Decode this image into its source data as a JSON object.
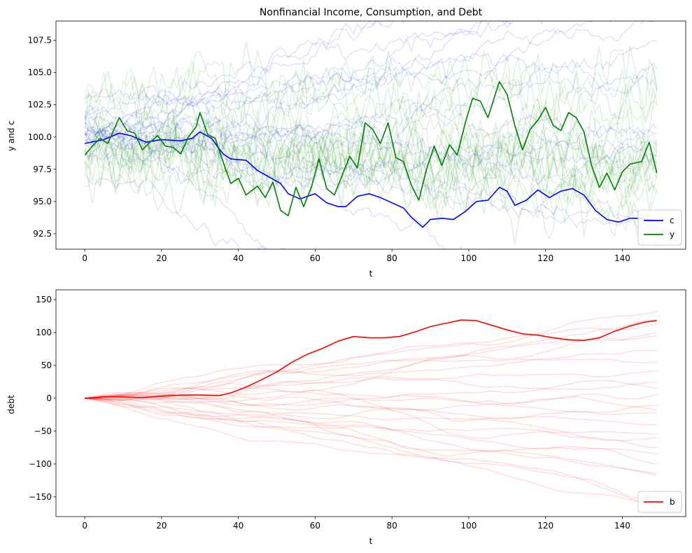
{
  "chart_data": [
    {
      "type": "line",
      "title": "Nonfinancial Income, Consumption, and Debt",
      "xlabel": "t",
      "ylabel": "y and c",
      "xlim": [
        -7.5,
        156.5
      ],
      "ylim": [
        91.3,
        109.0
      ],
      "xticks": [
        0,
        20,
        40,
        60,
        80,
        100,
        120,
        140
      ],
      "yticks": [
        92.5,
        95.0,
        97.5,
        100.0,
        102.5,
        105.0,
        107.5
      ],
      "ytick_labels": [
        "92.5",
        "95.0",
        "97.5",
        "100.0",
        "102.5",
        "105.0",
        "107.5"
      ],
      "grid": false,
      "legend_position": "lower-right",
      "colors": {
        "c": "#0000ff",
        "y": "#008000"
      },
      "faint_paths": {
        "c": {
          "count": 20,
          "opacity": 0.12,
          "spread_end": 7.5,
          "center": 100.0
        },
        "y": {
          "count": 20,
          "opacity": 0.12,
          "spread_end": 3.0,
          "center": 100.0
        }
      },
      "series": [
        {
          "name": "c",
          "color": "#0000ff",
          "points": [
            [
              0,
              99.5
            ],
            [
              5,
              99.8
            ],
            [
              9,
              100.3
            ],
            [
              12,
              100.1
            ],
            [
              16,
              99.6
            ],
            [
              20,
              99.8
            ],
            [
              25,
              99.7
            ],
            [
              28,
              99.9
            ],
            [
              30,
              100.4
            ],
            [
              33,
              99.9
            ],
            [
              36,
              98.7
            ],
            [
              38,
              98.3
            ],
            [
              42,
              98.2
            ],
            [
              45,
              97.4
            ],
            [
              48,
              96.9
            ],
            [
              51,
              96.4
            ],
            [
              53,
              95.6
            ],
            [
              56,
              95.2
            ],
            [
              60,
              95.6
            ],
            [
              63,
              94.9
            ],
            [
              66,
              94.6
            ],
            [
              68,
              94.6
            ],
            [
              71,
              95.4
            ],
            [
              74,
              95.6
            ],
            [
              77,
              95.3
            ],
            [
              80,
              94.9
            ],
            [
              83,
              94.5
            ],
            [
              85,
              93.8
            ],
            [
              88,
              93.0
            ],
            [
              90,
              93.6
            ],
            [
              93,
              93.7
            ],
            [
              96,
              93.6
            ],
            [
              99,
              94.2
            ],
            [
              102,
              95.0
            ],
            [
              105,
              95.1
            ],
            [
              108,
              96.1
            ],
            [
              110,
              95.8
            ],
            [
              112,
              94.7
            ],
            [
              115,
              95.1
            ],
            [
              118,
              95.9
            ],
            [
              121,
              95.3
            ],
            [
              124,
              95.8
            ],
            [
              127,
              96.0
            ],
            [
              130,
              95.5
            ],
            [
              133,
              94.3
            ],
            [
              136,
              93.6
            ],
            [
              139,
              93.4
            ],
            [
              142,
              93.7
            ],
            [
              145,
              93.7
            ],
            [
              149,
              93.5
            ]
          ]
        },
        {
          "name": "y",
          "color": "#008000",
          "points": [
            [
              0,
              98.6
            ],
            [
              2,
              99.3
            ],
            [
              4,
              99.9
            ],
            [
              6,
              99.5
            ],
            [
              9,
              101.5
            ],
            [
              11,
              100.5
            ],
            [
              13,
              100.3
            ],
            [
              15,
              99.0
            ],
            [
              17,
              99.6
            ],
            [
              19,
              100.1
            ],
            [
              21,
              99.3
            ],
            [
              23,
              99.2
            ],
            [
              25,
              98.7
            ],
            [
              27,
              100.0
            ],
            [
              29,
              100.8
            ],
            [
              30,
              101.9
            ],
            [
              32,
              100.2
            ],
            [
              34,
              99.9
            ],
            [
              36,
              98.1
            ],
            [
              38,
              96.4
            ],
            [
              40,
              96.8
            ],
            [
              42,
              95.5
            ],
            [
              45,
              96.2
            ],
            [
              47,
              95.3
            ],
            [
              49,
              96.5
            ],
            [
              51,
              94.3
            ],
            [
              53,
              93.9
            ],
            [
              55,
              96.1
            ],
            [
              57,
              94.6
            ],
            [
              59,
              96.1
            ],
            [
              61,
              98.3
            ],
            [
              63,
              96.0
            ],
            [
              65,
              95.5
            ],
            [
              67,
              97.0
            ],
            [
              69,
              98.5
            ],
            [
              71,
              97.6
            ],
            [
              73,
              101.1
            ],
            [
              75,
              100.6
            ],
            [
              77,
              99.5
            ],
            [
              79,
              101.1
            ],
            [
              81,
              98.4
            ],
            [
              83,
              98.1
            ],
            [
              85,
              96.3
            ],
            [
              87,
              95.1
            ],
            [
              89,
              97.5
            ],
            [
              91,
              99.3
            ],
            [
              93,
              97.8
            ],
            [
              95,
              99.4
            ],
            [
              97,
              98.6
            ],
            [
              99,
              101.0
            ],
            [
              101,
              103.0
            ],
            [
              103,
              102.8
            ],
            [
              105,
              101.5
            ],
            [
              107,
              103.4
            ],
            [
              108,
              104.3
            ],
            [
              110,
              103.3
            ],
            [
              112,
              100.9
            ],
            [
              114,
              99.0
            ],
            [
              116,
              100.6
            ],
            [
              118,
              101.3
            ],
            [
              120,
              102.3
            ],
            [
              122,
              100.9
            ],
            [
              124,
              100.5
            ],
            [
              126,
              101.9
            ],
            [
              128,
              101.5
            ],
            [
              130,
              100.4
            ],
            [
              132,
              97.8
            ],
            [
              134,
              96.1
            ],
            [
              136,
              97.2
            ],
            [
              138,
              95.9
            ],
            [
              140,
              97.3
            ],
            [
              142,
              97.9
            ],
            [
              145,
              98.1
            ],
            [
              147,
              99.6
            ],
            [
              149,
              97.2
            ]
          ]
        }
      ]
    },
    {
      "type": "line",
      "title": "",
      "xlabel": "t",
      "ylabel": "debt",
      "xlim": [
        -7.5,
        156.5
      ],
      "ylim": [
        -180,
        165
      ],
      "xticks": [
        0,
        20,
        40,
        60,
        80,
        100,
        120,
        140
      ],
      "yticks": [
        -150,
        -100,
        -50,
        0,
        50,
        100,
        150
      ],
      "ytick_labels": [
        "−150",
        "−100",
        "−50",
        "0",
        "50",
        "100",
        "150"
      ],
      "grid": false,
      "legend_position": "lower-right",
      "colors": {
        "b": "#ff0000"
      },
      "faint_paths": {
        "b": {
          "count": 25,
          "opacity": 0.13,
          "end_values": [
            132,
            120,
            112,
            100,
            95,
            72,
            56,
            42,
            25,
            15,
            5,
            -10,
            -18,
            -22,
            -40,
            -55,
            -60,
            -75,
            -85,
            -100,
            -115,
            -118,
            -158,
            -162,
            -170
          ]
        }
      },
      "series": [
        {
          "name": "b",
          "color": "#ff0000",
          "points": [
            [
              0,
              0
            ],
            [
              5,
              2
            ],
            [
              10,
              2
            ],
            [
              15,
              1
            ],
            [
              20,
              3
            ],
            [
              25,
              5
            ],
            [
              30,
              5
            ],
            [
              35,
              4
            ],
            [
              38,
              8
            ],
            [
              42,
              17
            ],
            [
              46,
              28
            ],
            [
              50,
              40
            ],
            [
              54,
              55
            ],
            [
              58,
              67
            ],
            [
              62,
              76
            ],
            [
              66,
              87
            ],
            [
              70,
              94
            ],
            [
              74,
              92
            ],
            [
              78,
              92
            ],
            [
              82,
              94
            ],
            [
              86,
              101
            ],
            [
              90,
              109
            ],
            [
              94,
              114
            ],
            [
              98,
              119
            ],
            [
              102,
              118
            ],
            [
              106,
              111
            ],
            [
              110,
              104
            ],
            [
              114,
              98
            ],
            [
              118,
              96
            ],
            [
              122,
              92
            ],
            [
              126,
              89
            ],
            [
              130,
              88
            ],
            [
              134,
              92
            ],
            [
              138,
              102
            ],
            [
              142,
              110
            ],
            [
              146,
              116
            ],
            [
              149,
              118
            ]
          ]
        }
      ]
    }
  ]
}
